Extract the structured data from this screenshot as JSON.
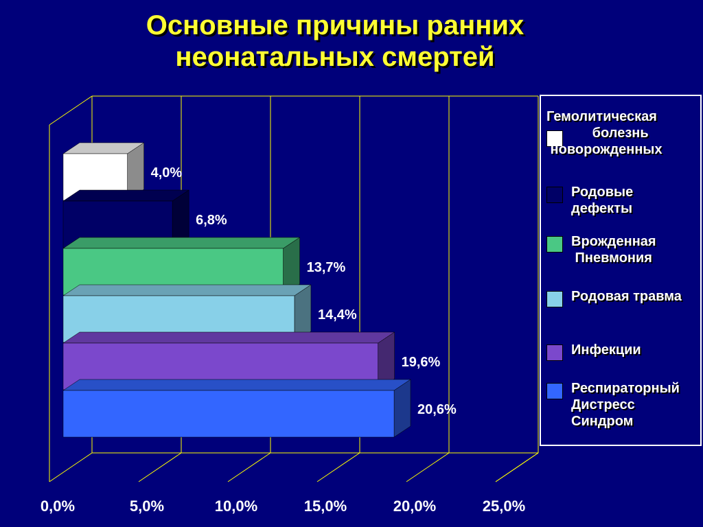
{
  "title_line1": "Основные причины ранних",
  "title_line2": "неонатальных смертей",
  "chart_data": {
    "type": "bar",
    "orientation": "horizontal",
    "three_d": true,
    "categories": [
      "Гемолитическая болезнь новорожденных",
      "Родовые дефекты",
      "Врожденная Пневмония",
      "Родовая травма",
      "Инфекции",
      "Респираторный Дистресс Синдром"
    ],
    "values": [
      4.0,
      6.8,
      13.7,
      14.4,
      19.6,
      20.6
    ],
    "value_labels": [
      "4,0%",
      "6,8%",
      "13,7%",
      "14,4%",
      "19,6%",
      "20,6%"
    ],
    "colors": [
      "#ffffff",
      "#000066",
      "#4ac884",
      "#88d0e8",
      "#7b48cc",
      "#3366ff"
    ],
    "xlim": [
      0,
      25
    ],
    "xticks": [
      "0,0%",
      "5,0%",
      "10,0%",
      "15,0%",
      "20,0%",
      "25,0%"
    ],
    "grid": true,
    "legend_position": "right"
  },
  "legend": [
    {
      "text": "Гемолитическая\n            болезнь\n новорожденных",
      "color": "#ffffff"
    },
    {
      "text": "Родовые\nдефекты",
      "color": "#000066"
    },
    {
      "text": "Врожденная\n Пневмония",
      "color": "#4ac884"
    },
    {
      "text": "Родовая травма",
      "color": "#88d0e8"
    },
    {
      "text": "Инфекции",
      "color": "#7b48cc"
    },
    {
      "text": "Респираторный\nДистресс\nСиндром",
      "color": "#3366ff"
    }
  ],
  "colors": {
    "background": "#00007a",
    "title": "#ffff33",
    "axis": "#ffff00",
    "label": "#ffffff"
  }
}
